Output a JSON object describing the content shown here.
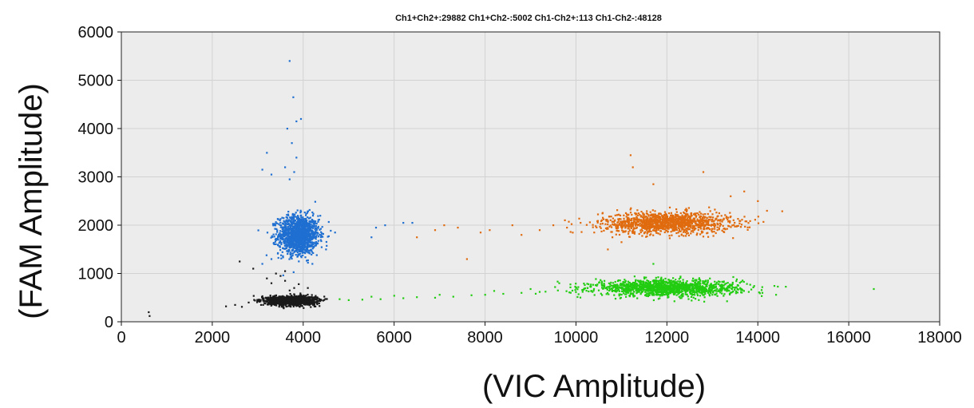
{
  "chart_data": {
    "type": "scatter",
    "title": "Ch1+Ch2+:29882  Ch1+Ch2-:5002  Ch1-Ch2+:113  Ch1-Ch2-:48128",
    "xlabel": "(VIC Amplitude)",
    "ylabel": "(FAM Amplitude)",
    "xlim": [
      0,
      18000
    ],
    "ylim": [
      0,
      6000
    ],
    "x_ticks": [
      0,
      2000,
      4000,
      6000,
      8000,
      10000,
      12000,
      14000,
      16000,
      18000
    ],
    "y_ticks": [
      0,
      1000,
      2000,
      3000,
      4000,
      5000,
      6000
    ],
    "grid": true,
    "series": [
      {
        "color": "#1f6fd1",
        "cluster": {
          "x_center": 3900,
          "y_center": 1800,
          "x_spread": 220,
          "y_spread": 200,
          "count": 1400
        },
        "outliers": [
          [
            3700,
            5400
          ],
          [
            3780,
            4650
          ],
          [
            3650,
            4000
          ],
          [
            3950,
            4200
          ],
          [
            3850,
            4150
          ],
          [
            3200,
            3500
          ],
          [
            3750,
            3700
          ],
          [
            3850,
            3400
          ],
          [
            3600,
            3200
          ],
          [
            3100,
            3150
          ],
          [
            3300,
            3050
          ],
          [
            3800,
            3100
          ],
          [
            3700,
            2950
          ],
          [
            5600,
            1950
          ],
          [
            5800,
            2000
          ],
          [
            6200,
            2050
          ],
          [
            6400,
            2050
          ],
          [
            5500,
            1750
          ],
          [
            4700,
            1850
          ],
          [
            4500,
            1500
          ],
          [
            3100,
            1200
          ],
          [
            3300,
            1300
          ]
        ]
      },
      {
        "color": "#e06b0e",
        "cluster": {
          "x_center": 12000,
          "y_center": 2050,
          "x_spread": 700,
          "y_spread": 110,
          "count": 1300
        },
        "outliers": [
          [
            11200,
            3450
          ],
          [
            11250,
            3200
          ],
          [
            11700,
            2850
          ],
          [
            12800,
            3100
          ],
          [
            13700,
            2700
          ],
          [
            14000,
            2500
          ],
          [
            14200,
            2300
          ],
          [
            13400,
            2600
          ],
          [
            6500,
            1750
          ],
          [
            6900,
            1900
          ],
          [
            7100,
            2000
          ],
          [
            7400,
            1950
          ],
          [
            7600,
            1300
          ],
          [
            7900,
            1850
          ],
          [
            8100,
            1900
          ],
          [
            8600,
            2000
          ],
          [
            8800,
            1800
          ],
          [
            9200,
            1900
          ],
          [
            9500,
            2000
          ],
          [
            9800,
            1950
          ],
          [
            10100,
            2050
          ],
          [
            10400,
            1850
          ],
          [
            10700,
            1500
          ],
          [
            11000,
            1650
          ],
          [
            10800,
            1750
          ]
        ]
      },
      {
        "color": "#22cc11",
        "cluster": {
          "x_center": 12000,
          "y_center": 700,
          "x_spread": 800,
          "y_spread": 80,
          "count": 1400
        },
        "outliers": [
          [
            16550,
            680
          ],
          [
            14400,
            560
          ],
          [
            14100,
            600
          ],
          [
            13800,
            620
          ],
          [
            11700,
            1200
          ],
          [
            10000,
            700
          ],
          [
            9600,
            650
          ],
          [
            9200,
            620
          ],
          [
            8800,
            600
          ],
          [
            8400,
            580
          ],
          [
            8000,
            560
          ],
          [
            7700,
            550
          ],
          [
            7300,
            520
          ],
          [
            6900,
            500
          ],
          [
            6500,
            510
          ],
          [
            6200,
            490
          ],
          [
            5700,
            470
          ],
          [
            5300,
            460
          ],
          [
            5000,
            450
          ],
          [
            4800,
            470
          ],
          [
            5500,
            520
          ],
          [
            6000,
            540
          ],
          [
            7000,
            560
          ],
          [
            8200,
            640
          ],
          [
            9000,
            680
          ]
        ]
      },
      {
        "color": "#1a1a1a",
        "cluster": {
          "x_center": 3750,
          "y_center": 440,
          "x_spread": 260,
          "y_spread": 45,
          "count": 1500
        },
        "outliers": [
          [
            600,
            200
          ],
          [
            620,
            120
          ],
          [
            2300,
            320
          ],
          [
            2500,
            350
          ],
          [
            2650,
            310
          ],
          [
            2800,
            400
          ],
          [
            3000,
            450
          ],
          [
            2600,
            1250
          ],
          [
            2900,
            1100
          ],
          [
            3200,
            900
          ],
          [
            3300,
            800
          ],
          [
            3500,
            950
          ],
          [
            3600,
            1050
          ],
          [
            3800,
            700
          ],
          [
            3700,
            650
          ],
          [
            3400,
            1000
          ],
          [
            3600,
            850
          ],
          [
            3900,
            780
          ],
          [
            4100,
            700
          ],
          [
            4300,
            380
          ]
        ]
      }
    ]
  }
}
